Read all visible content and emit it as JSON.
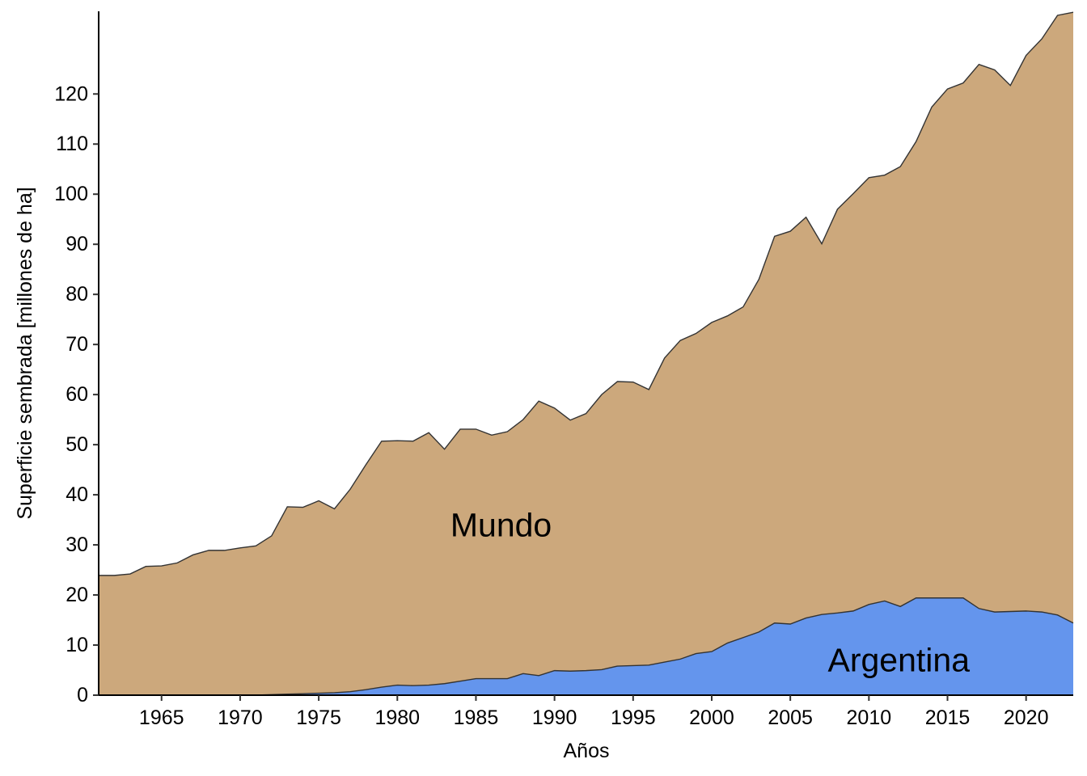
{
  "chart_data": {
    "type": "area",
    "stacked": true,
    "title": "",
    "xlabel": "Años",
    "ylabel": "Superficie sembrada [millones de ha]",
    "xlim": [
      1961,
      2023
    ],
    "ylim": [
      0,
      136.5
    ],
    "xticks": [
      1965,
      1970,
      1975,
      1980,
      1985,
      1990,
      1995,
      2000,
      2005,
      2010,
      2015,
      2020
    ],
    "yticks": [
      0,
      10,
      20,
      30,
      40,
      50,
      60,
      70,
      80,
      90,
      100,
      110,
      120
    ],
    "grid": false,
    "legend": "none",
    "x": [
      1961,
      1962,
      1963,
      1964,
      1965,
      1966,
      1967,
      1968,
      1969,
      1970,
      1971,
      1972,
      1973,
      1974,
      1975,
      1976,
      1977,
      1978,
      1979,
      1980,
      1981,
      1982,
      1983,
      1984,
      1985,
      1986,
      1987,
      1988,
      1989,
      1990,
      1991,
      1992,
      1993,
      1994,
      1995,
      1996,
      1997,
      1998,
      1999,
      2000,
      2001,
      2002,
      2003,
      2004,
      2005,
      2006,
      2007,
      2008,
      2009,
      2010,
      2011,
      2012,
      2013,
      2014,
      2015,
      2016,
      2017,
      2018,
      2019,
      2020,
      2021,
      2022,
      2023
    ],
    "series": [
      {
        "name": "Argentina",
        "color": "#6495ED",
        "values": [
          0,
          0,
          0,
          0,
          0,
          0,
          0,
          0,
          0,
          0,
          0,
          0.1,
          0.2,
          0.3,
          0.4,
          0.5,
          0.7,
          1.1,
          1.6,
          2.0,
          1.9,
          2.0,
          2.3,
          2.8,
          3.3,
          3.3,
          3.3,
          4.3,
          3.9,
          4.9,
          4.8,
          4.9,
          5.1,
          5.8,
          5.9,
          6.0,
          6.6,
          7.2,
          8.3,
          8.7,
          10.4,
          11.5,
          12.6,
          14.4,
          14.2,
          15.4,
          16.1,
          16.4,
          16.8,
          18.1,
          18.8,
          17.7,
          19.4,
          19.4,
          19.4,
          19.4,
          17.3,
          16.6,
          16.7,
          16.8,
          16.6,
          16.0,
          14.4
        ]
      },
      {
        "name": "Mundo",
        "color": "#CCA87C",
        "values": [
          23.9,
          23.9,
          24.2,
          25.7,
          25.8,
          26.4,
          28.0,
          28.9,
          28.9,
          29.4,
          29.8,
          31.7,
          37.4,
          37.2,
          38.4,
          36.7,
          40.4,
          44.9,
          49.1,
          48.8,
          48.8,
          50.4,
          46.8,
          50.3,
          49.8,
          48.6,
          49.3,
          50.7,
          54.8,
          52.4,
          50.1,
          51.3,
          54.9,
          56.8,
          56.6,
          55.0,
          60.7,
          63.6,
          63.9,
          65.7,
          65.3,
          66.0,
          70.4,
          77.2,
          78.4,
          80.0,
          74.0,
          80.6,
          83.3,
          85.2,
          85.0,
          87.8,
          91.1,
          98.0,
          101.6,
          102.8,
          108.6,
          108.2,
          105.0,
          110.9,
          114.4,
          119.7,
          121.9
        ]
      }
    ],
    "annotations": [
      {
        "text": "Mundo",
        "x": 1986.6,
        "y": 34
      },
      {
        "text": "Argentina",
        "x": 2011.9,
        "y": 7
      }
    ]
  }
}
